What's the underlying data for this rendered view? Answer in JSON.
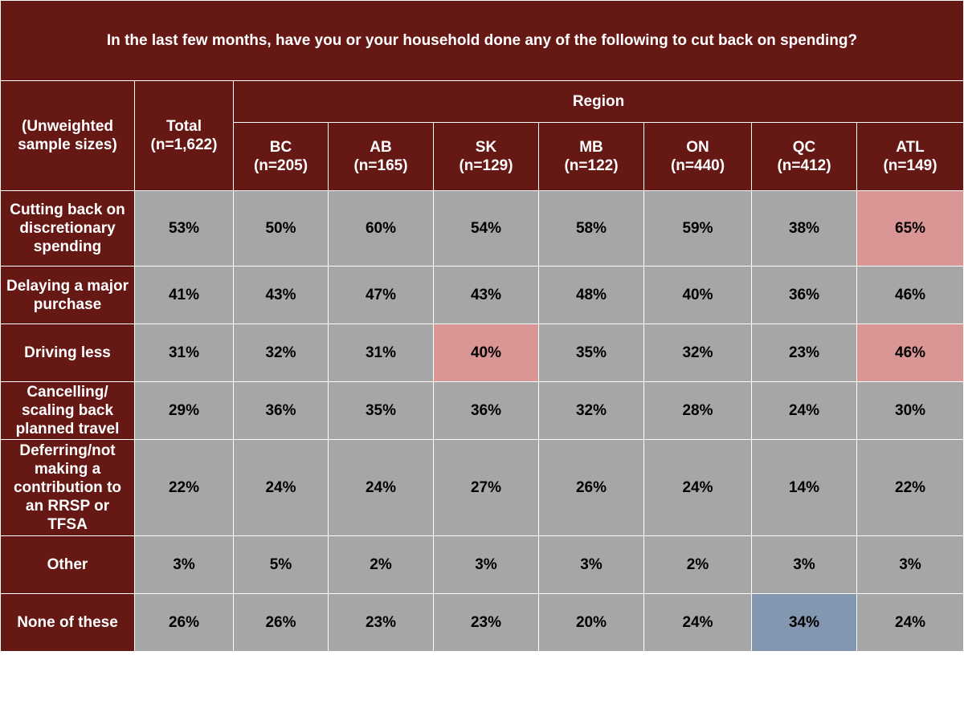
{
  "title": "In the last few months, have you or your household done any of the following to cut back on spending?",
  "header": {
    "stub_label": "(Unweighted sample sizes)",
    "total_label": "Total",
    "total_n": "(n=1,622)",
    "region_label": "Region",
    "regions": [
      {
        "name": "BC",
        "n": "(n=205)"
      },
      {
        "name": "AB",
        "n": "(n=165)"
      },
      {
        "name": "SK",
        "n": "(n=129)"
      },
      {
        "name": "MB",
        "n": "(n=122)"
      },
      {
        "name": "ON",
        "n": "(n=440)"
      },
      {
        "name": "QC",
        "n": "(n=412)"
      },
      {
        "name": "ATL",
        "n": "(n=149)"
      }
    ]
  },
  "colors": {
    "header_bg": "#661815",
    "cell_bg": "#a6a6a6",
    "higher_highlight": "#da9694",
    "lower_highlight": "#8497b0"
  },
  "chart_data": {
    "type": "table",
    "title": "In the last few months, have you or your household done any of the following to cut back on spending?",
    "columns": [
      "Total",
      "BC",
      "AB",
      "SK",
      "MB",
      "ON",
      "QC",
      "ATL"
    ],
    "rows": [
      {
        "label": "Cutting back on discretionary spending",
        "values": [
          "53%",
          "50%",
          "60%",
          "54%",
          "58%",
          "59%",
          "38%",
          "65%"
        ],
        "highlight": [
          "",
          "",
          "",
          "",
          "",
          "",
          "",
          "pink"
        ]
      },
      {
        "label": "Delaying a major purchase",
        "values": [
          "41%",
          "43%",
          "47%",
          "43%",
          "48%",
          "40%",
          "36%",
          "46%"
        ],
        "highlight": [
          "",
          "",
          "",
          "",
          "",
          "",
          "",
          ""
        ]
      },
      {
        "label": "Driving less",
        "values": [
          "31%",
          "32%",
          "31%",
          "40%",
          "35%",
          "32%",
          "23%",
          "46%"
        ],
        "highlight": [
          "",
          "",
          "",
          "pink",
          "",
          "",
          "",
          "pink"
        ]
      },
      {
        "label": "Cancelling/ scaling back planned travel",
        "values": [
          "29%",
          "36%",
          "35%",
          "36%",
          "32%",
          "28%",
          "24%",
          "30%"
        ],
        "highlight": [
          "",
          "",
          "",
          "",
          "",
          "",
          "",
          ""
        ]
      },
      {
        "label": "Deferring/not making a contribution to an RRSP or TFSA",
        "values": [
          "22%",
          "24%",
          "24%",
          "27%",
          "26%",
          "24%",
          "14%",
          "22%"
        ],
        "highlight": [
          "",
          "",
          "",
          "",
          "",
          "",
          "",
          ""
        ]
      },
      {
        "label": "Other",
        "values": [
          "3%",
          "5%",
          "2%",
          "3%",
          "3%",
          "2%",
          "3%",
          "3%"
        ],
        "highlight": [
          "",
          "",
          "",
          "",
          "",
          "",
          "",
          ""
        ]
      },
      {
        "label": "None of these",
        "values": [
          "26%",
          "26%",
          "23%",
          "23%",
          "20%",
          "24%",
          "34%",
          "24%"
        ],
        "highlight": [
          "",
          "",
          "",
          "",
          "",
          "",
          "blue",
          ""
        ]
      }
    ]
  }
}
